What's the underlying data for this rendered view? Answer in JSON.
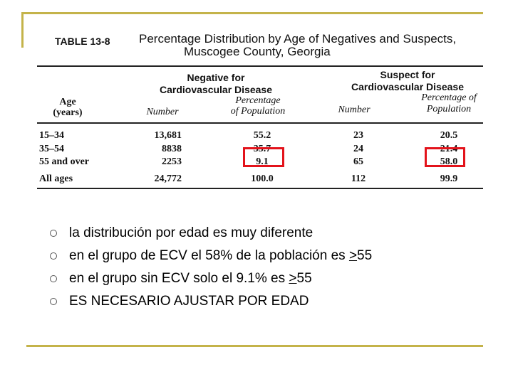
{
  "table": {
    "label": "TABLE 13-8",
    "caption": [
      "Percentage Distribution by Age of Negatives and Suspects,",
      "Muscogee County, Georgia"
    ],
    "groups": [
      [
        "Negative for",
        "Cardiovascular Disease"
      ],
      [
        "Suspect for",
        "Cardiovascular Disease"
      ]
    ],
    "columns": [
      [
        "Age",
        "(years)"
      ],
      [
        "Number"
      ],
      [
        "Percentage",
        "of Population"
      ],
      [
        "Number"
      ],
      [
        "Percentage of",
        "Population"
      ]
    ],
    "rows": [
      [
        "15–34",
        "13,681",
        "55.2",
        "23",
        "20.5"
      ],
      [
        "35–54",
        "8838",
        "35.7",
        "24",
        "21.4"
      ],
      [
        "55 and over",
        "2253",
        "9.1",
        "65",
        "58.0"
      ],
      [
        "All ages",
        "24,772",
        "100.0",
        "112",
        "99.9"
      ]
    ]
  },
  "bullets": [
    {
      "text": "la distribución por edad es muy diferente"
    },
    {
      "text": "en el grupo de ECV el 58% de la población es ",
      "underlined": ">",
      "after": "55"
    },
    {
      "text": "en el grupo sin ECV solo el 9.1% es ",
      "underlined": ">",
      "after": "55"
    },
    {
      "text": "ES NECESARIO AJUSTAR POR EDAD"
    }
  ]
}
